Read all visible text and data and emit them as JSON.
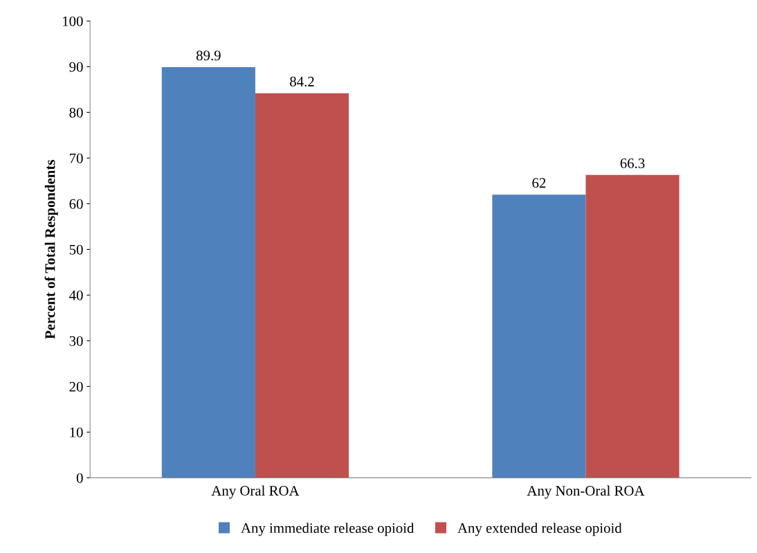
{
  "chart_data": {
    "type": "bar",
    "ylabel": "Percent of Total Respondents",
    "categories": [
      "Any Oral ROA",
      "Any Non-Oral ROA"
    ],
    "series": [
      {
        "name": "Any immediate release opioid",
        "color": "#4f81bd",
        "values": [
          89.9,
          62
        ]
      },
      {
        "name": "Any extended release opioid",
        "color": "#c0504d",
        "values": [
          84.2,
          66.3
        ]
      }
    ],
    "ylim": [
      0,
      100
    ],
    "yticks": [
      0,
      10,
      20,
      30,
      40,
      50,
      60,
      70,
      80,
      90,
      100
    ],
    "data_labels": true,
    "grid": false,
    "legend": "bottom"
  }
}
